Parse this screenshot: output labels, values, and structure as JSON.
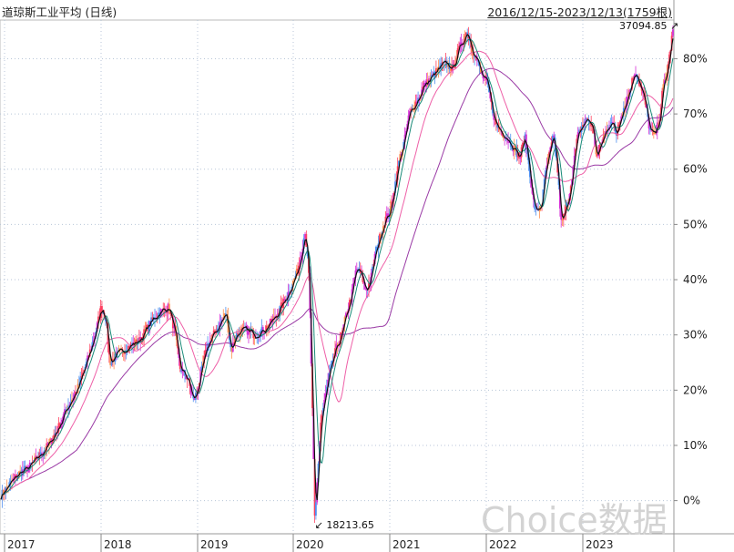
{
  "window": {
    "title": "道琼斯工业平均 (日线)",
    "range": "2016/12/15-2023/12/13(1759根)",
    "watermark": "Choice数据"
  },
  "colors": {
    "up": "#ff4060",
    "down": "#d630d6",
    "mix1": "#5090f0",
    "mix2": "#ff9050",
    "ma_short": "#111111",
    "ma_mid": "#1a8a78",
    "ma_long1": "#ee5fa7",
    "ma_long2": "#9a3aa5",
    "grid": "#b8c6d8"
  },
  "chart_data": {
    "type": "line",
    "title": "道琼斯工业平均 (日线)",
    "x_axis_labels": [
      "2017",
      "2018",
      "2019",
      "2020",
      "2021",
      "2022",
      "2023"
    ],
    "y_axis_labels": [
      "80%",
      "70%",
      "60%",
      "50%",
      "40%",
      "30%",
      "20%",
      "10%",
      "0%"
    ],
    "y_ticks": [
      80,
      70,
      60,
      50,
      40,
      30,
      20,
      10,
      0
    ],
    "ylim": [
      -6,
      87
    ],
    "x_range": [
      2016.95,
      2023.95
    ],
    "grid": true,
    "annotations": {
      "high": {
        "label": "37094.85",
        "x": 2023.95,
        "y": 86
      },
      "low": {
        "label": "18213.65",
        "x": 2020.22,
        "y": -5
      }
    },
    "series": [
      {
        "role": "close",
        "x": [
          2016.96,
          2017.05,
          2017.15,
          2017.25,
          2017.35,
          2017.45,
          2017.55,
          2017.65,
          2017.75,
          2017.85,
          2017.95,
          2018.0,
          2018.05,
          2018.09,
          2018.15,
          2018.2,
          2018.3,
          2018.4,
          2018.5,
          2018.6,
          2018.7,
          2018.76,
          2018.82,
          2018.9,
          2018.96,
          2019.0,
          2019.1,
          2019.2,
          2019.3,
          2019.35,
          2019.4,
          2019.5,
          2019.6,
          2019.7,
          2019.8,
          2019.9,
          2019.98,
          2020.05,
          2020.12,
          2020.16,
          2020.2,
          2020.22,
          2020.28,
          2020.35,
          2020.4,
          2020.45,
          2020.5,
          2020.55,
          2020.6,
          2020.65,
          2020.7,
          2020.75,
          2020.8,
          2020.85,
          2020.9,
          2020.95,
          2021.0,
          2021.05,
          2021.1,
          2021.15,
          2021.2,
          2021.3,
          2021.35,
          2021.4,
          2021.45,
          2021.5,
          2021.55,
          2021.6,
          2021.65,
          2021.7,
          2021.75,
          2021.8,
          2021.85,
          2021.9,
          2021.95,
          2022.0,
          2022.05,
          2022.1,
          2022.15,
          2022.2,
          2022.28,
          2022.35,
          2022.4,
          2022.45,
          2022.48,
          2022.52,
          2022.58,
          2022.62,
          2022.66,
          2022.7,
          2022.74,
          2022.78,
          2022.85,
          2022.9,
          2022.95,
          2023.0,
          2023.05,
          2023.1,
          2023.15,
          2023.2,
          2023.25,
          2023.3,
          2023.35,
          2023.4,
          2023.45,
          2023.5,
          2023.55,
          2023.6,
          2023.65,
          2023.7,
          2023.75,
          2023.8,
          2023.83,
          2023.87,
          2023.9,
          2023.93,
          2023.95
        ],
        "y": [
          1,
          3,
          5,
          6,
          8,
          10,
          13,
          17,
          20,
          25,
          31,
          35,
          33,
          25,
          26,
          27,
          28,
          29,
          32,
          34,
          35,
          31,
          24,
          22,
          18,
          20,
          28,
          31,
          34,
          27,
          30,
          31,
          30,
          31,
          33,
          36,
          39,
          42,
          49,
          40,
          12,
          -4,
          14,
          21,
          25,
          28,
          30,
          34,
          37,
          42,
          41,
          38,
          40,
          45,
          48,
          51,
          52,
          57,
          62,
          65,
          70,
          73,
          75,
          76,
          77,
          78,
          79,
          79,
          78,
          81,
          83,
          85,
          82,
          80,
          77,
          76,
          72,
          68,
          67,
          66,
          64,
          62,
          66,
          60,
          55,
          52,
          54,
          60,
          63,
          66,
          60,
          50,
          54,
          60,
          66,
          68,
          69,
          68,
          62,
          65,
          67,
          69,
          66,
          70,
          72,
          75,
          78,
          75,
          72,
          67,
          66,
          69,
          74,
          77,
          80,
          84,
          86
        ]
      }
    ]
  }
}
